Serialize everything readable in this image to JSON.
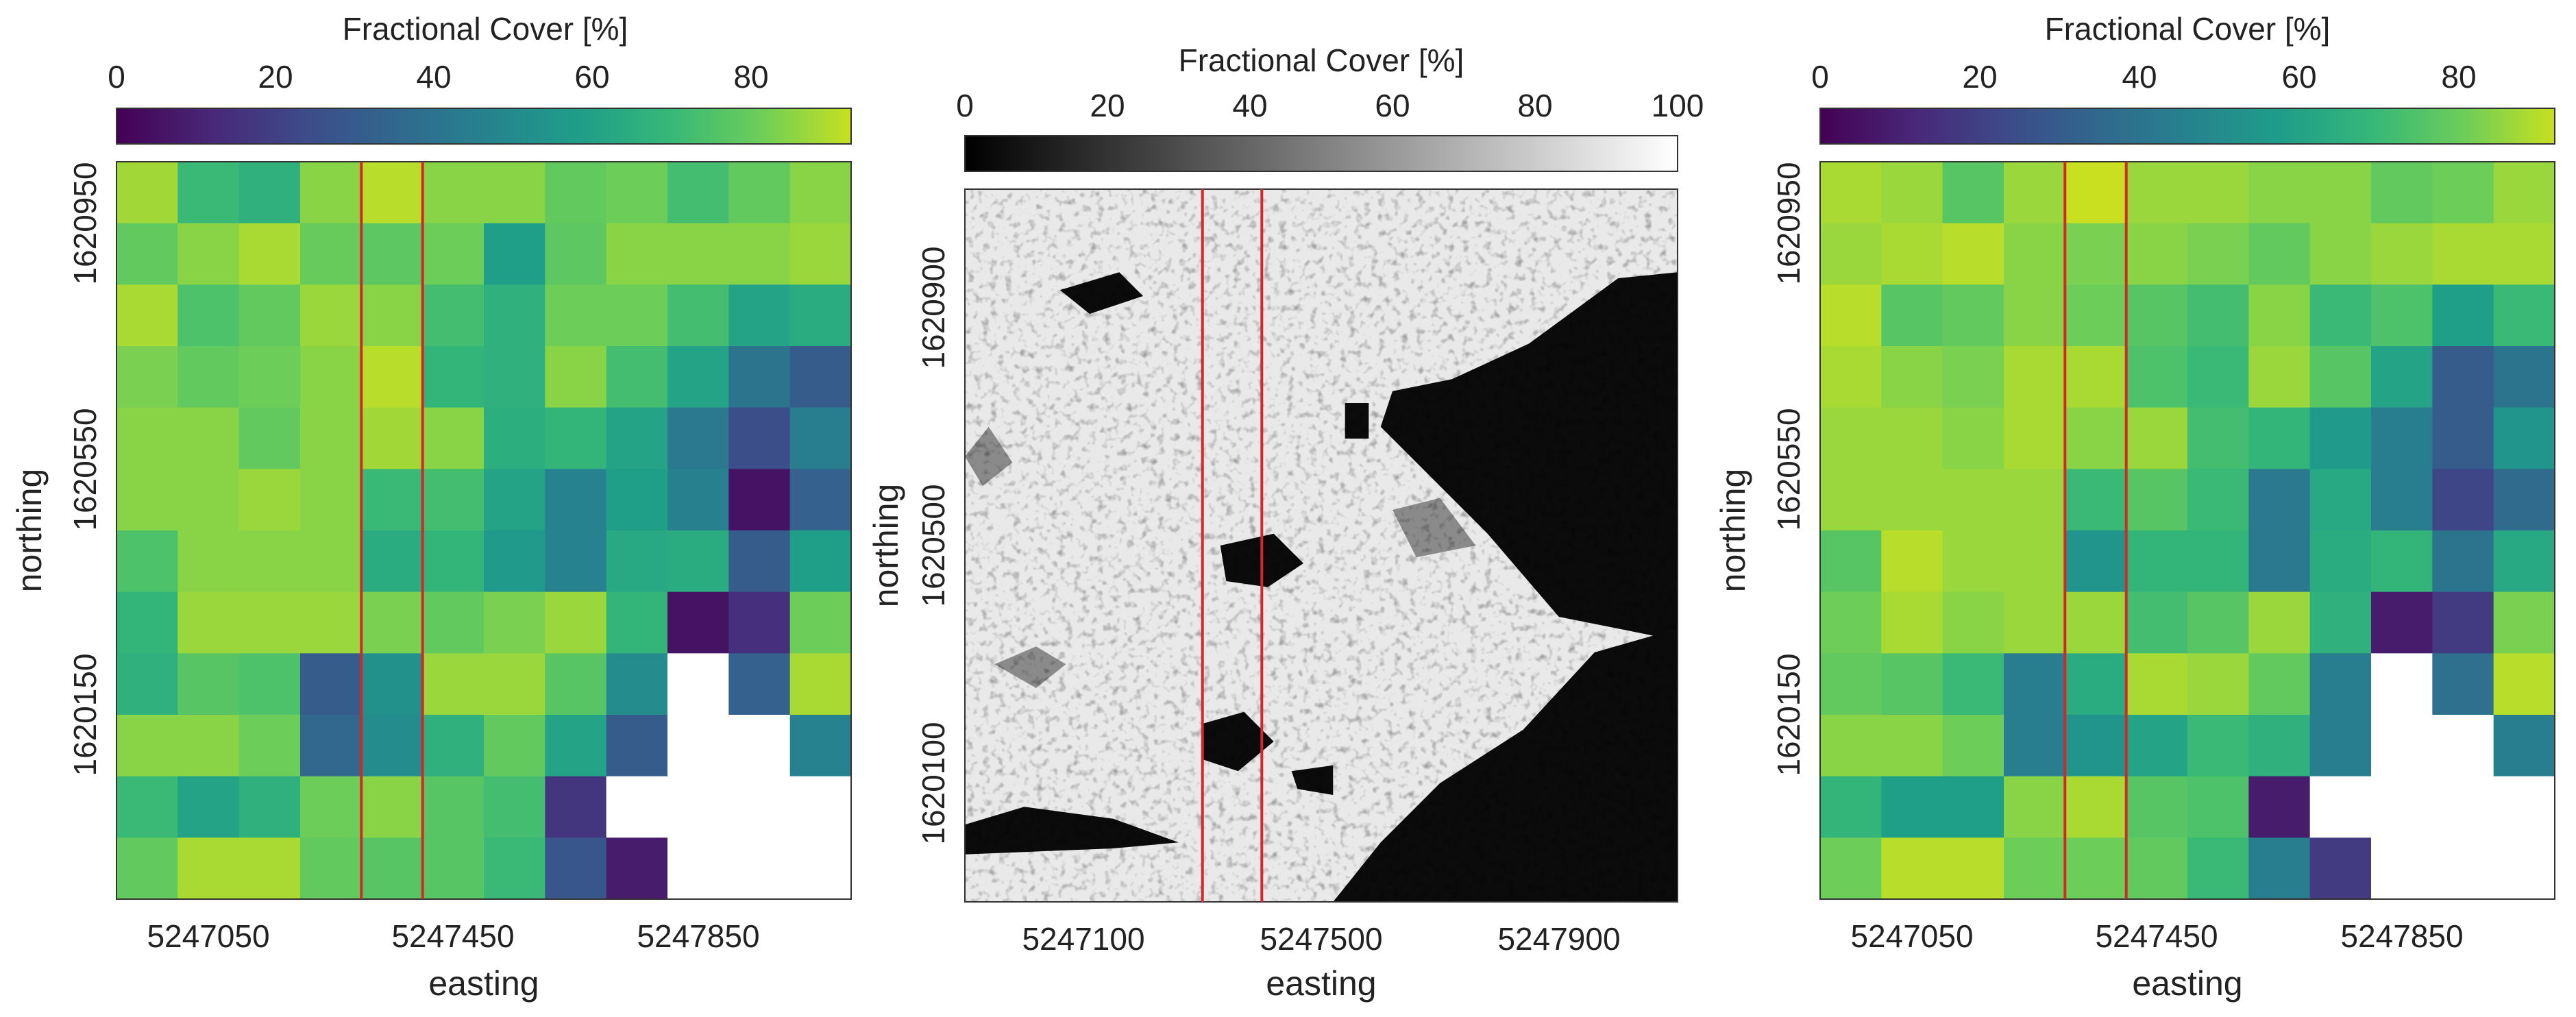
{
  "figure": {
    "panels": [
      "left",
      "middle",
      "right"
    ]
  },
  "chart_data": [
    {
      "type": "heatmap",
      "panel": "left",
      "colormap": "viridis",
      "colorbar_label": "Fractional Cover [%]",
      "colorbar_range": [
        0,
        92
      ],
      "colorbar_ticks": [
        "0",
        "20",
        "40",
        "60",
        "80"
      ],
      "xlabel": "easting",
      "ylabel": "northing",
      "xticks": [
        5247050,
        5247450,
        5247850
      ],
      "yticks": [
        1620950,
        1620550,
        1620150
      ],
      "x_range": [
        5246900,
        5248100
      ],
      "y_range": [
        1619850,
        1621050
      ],
      "red_lines_easting": [
        5247300,
        5247400
      ],
      "grid": [
        [
          87,
          70,
          66,
          84,
          90,
          84,
          84,
          78,
          80,
          72,
          78,
          84
        ],
        [
          78,
          84,
          88,
          79,
          77,
          80,
          58,
          77,
          84,
          84,
          84,
          86
        ],
        [
          88,
          74,
          78,
          86,
          84,
          72,
          66,
          80,
          80,
          72,
          60,
          64
        ],
        [
          82,
          78,
          80,
          84,
          90,
          68,
          66,
          84,
          72,
          60,
          40,
          30
        ],
        [
          84,
          84,
          78,
          84,
          87,
          84,
          65,
          68,
          60,
          42,
          25,
          44
        ],
        [
          84,
          84,
          86,
          84,
          70,
          72,
          60,
          46,
          58,
          45,
          5,
          32
        ],
        [
          74,
          84,
          84,
          84,
          64,
          68,
          56,
          46,
          62,
          64,
          30,
          58
        ],
        [
          68,
          86,
          86,
          86,
          82,
          78,
          82,
          86,
          68,
          5,
          14,
          80
        ],
        [
          66,
          76,
          74,
          30,
          52,
          86,
          86,
          76,
          50,
          null,
          32,
          88
        ],
        [
          84,
          84,
          80,
          34,
          50,
          66,
          78,
          60,
          30,
          null,
          null,
          46
        ],
        [
          70,
          60,
          66,
          80,
          84,
          76,
          72,
          16,
          null,
          null,
          null,
          null
        ],
        [
          78,
          88,
          88,
          78,
          76,
          76,
          70,
          28,
          8,
          null,
          null,
          null
        ]
      ]
    },
    {
      "type": "heatmap",
      "panel": "middle",
      "colormap": "gray",
      "colorbar_label": "Fractional Cover [%]",
      "colorbar_range": [
        0,
        100
      ],
      "colorbar_ticks": [
        "0",
        "20",
        "40",
        "60",
        "80",
        "100"
      ],
      "xlabel": "easting",
      "ylabel": "northing",
      "xticks": [
        5247100,
        5247500,
        5247900
      ],
      "yticks": [
        1620900,
        1620500,
        1620100
      ],
      "x_range": [
        5246900,
        5248100
      ],
      "y_range": [
        1619900,
        1621100
      ],
      "red_lines_easting": [
        5247300,
        5247400
      ],
      "features": [
        {
          "kind": "dark_region",
          "points": [
            [
              5247620,
              1620760
            ],
            [
              5247720,
              1620780
            ],
            [
              5247850,
              1620840
            ],
            [
              5248000,
              1620950
            ],
            [
              5248100,
              1620960
            ],
            [
              5248100,
              1620340
            ],
            [
              5248000,
              1620360
            ],
            [
              5247900,
              1620380
            ],
            [
              5247780,
              1620520
            ],
            [
              5247680,
              1620620
            ],
            [
              5247600,
              1620700
            ]
          ]
        },
        {
          "kind": "dark_region",
          "points": [
            [
              5247840,
              1620190
            ],
            [
              5247960,
              1620320
            ],
            [
              5248100,
              1620360
            ],
            [
              5248100,
              1619900
            ],
            [
              5247520,
              1619900
            ],
            [
              5247600,
              1620000
            ],
            [
              5247700,
              1620100
            ]
          ]
        },
        {
          "kind": "dark_region",
          "points": [
            [
              5247300,
              1620200
            ],
            [
              5247370,
              1620220
            ],
            [
              5247420,
              1620170
            ],
            [
              5247360,
              1620120
            ],
            [
              5247300,
              1620140
            ]
          ]
        },
        {
          "kind": "dark_region",
          "points": [
            [
              5247330,
              1620500
            ],
            [
              5247420,
              1620520
            ],
            [
              5247470,
              1620470
            ],
            [
              5247410,
              1620430
            ],
            [
              5247340,
              1620440
            ]
          ]
        },
        {
          "kind": "dark_region",
          "points": [
            [
              5247540,
              1620740
            ],
            [
              5247580,
              1620740
            ],
            [
              5247580,
              1620680
            ],
            [
              5247540,
              1620680
            ]
          ]
        },
        {
          "kind": "dark_region",
          "points": [
            [
              5247060,
              1620930
            ],
            [
              5247160,
              1620960
            ],
            [
              5247200,
              1620920
            ],
            [
              5247110,
              1620890
            ]
          ]
        },
        {
          "kind": "dark_region",
          "points": [
            [
              5246900,
              1620030
            ],
            [
              5247000,
              1620060
            ],
            [
              5247150,
              1620040
            ],
            [
              5247260,
              1620000
            ],
            [
              5247150,
              1619990
            ],
            [
              5246900,
              1619980
            ]
          ]
        },
        {
          "kind": "dark_region",
          "points": [
            [
              5247450,
              1620120
            ],
            [
              5247520,
              1620130
            ],
            [
              5247520,
              1620080
            ],
            [
              5247460,
              1620090
            ]
          ]
        },
        {
          "kind": "mid_region",
          "points": [
            [
              5246950,
              1620300
            ],
            [
              5247020,
              1620330
            ],
            [
              5247070,
              1620300
            ],
            [
              5247020,
              1620260
            ]
          ]
        },
        {
          "kind": "mid_region",
          "points": [
            [
              5246900,
              1620650
            ],
            [
              5246940,
              1620700
            ],
            [
              5246980,
              1620640
            ],
            [
              5246930,
              1620600
            ]
          ]
        },
        {
          "kind": "mid_region",
          "points": [
            [
              5247620,
              1620560
            ],
            [
              5247700,
              1620580
            ],
            [
              5247760,
              1620500
            ],
            [
              5247660,
              1620480
            ]
          ]
        }
      ]
    },
    {
      "type": "heatmap",
      "panel": "right",
      "colormap": "viridis",
      "colorbar_label": "Fractional Cover [%]",
      "colorbar_range": [
        0,
        92
      ],
      "colorbar_ticks": [
        "0",
        "20",
        "40",
        "60",
        "80"
      ],
      "xlabel": "easting",
      "ylabel": "northing",
      "xticks": [
        5247050,
        5247450,
        5247850
      ],
      "yticks": [
        1620950,
        1620550,
        1620150
      ],
      "x_range": [
        5246900,
        5248100
      ],
      "y_range": [
        1619850,
        1621050
      ],
      "red_lines_easting": [
        5247300,
        5247400
      ],
      "grid": [
        [
          88,
          86,
          76,
          86,
          92,
          86,
          86,
          84,
          84,
          78,
          80,
          86
        ],
        [
          86,
          88,
          90,
          84,
          82,
          84,
          82,
          78,
          84,
          86,
          88,
          88
        ],
        [
          90,
          76,
          78,
          84,
          80,
          76,
          72,
          84,
          70,
          74,
          58,
          70
        ],
        [
          88,
          84,
          82,
          88,
          88,
          74,
          70,
          86,
          76,
          60,
          30,
          40
        ],
        [
          86,
          86,
          84,
          88,
          84,
          86,
          72,
          68,
          56,
          44,
          30,
          54
        ],
        [
          86,
          86,
          86,
          86,
          70,
          76,
          70,
          42,
          62,
          44,
          22,
          36
        ],
        [
          76,
          90,
          86,
          86,
          54,
          68,
          68,
          42,
          64,
          68,
          40,
          62
        ],
        [
          80,
          88,
          84,
          86,
          86,
          72,
          76,
          86,
          66,
          8,
          18,
          82
        ],
        [
          78,
          76,
          70,
          44,
          64,
          88,
          86,
          78,
          44,
          null,
          38,
          90
        ],
        [
          84,
          84,
          80,
          44,
          54,
          60,
          70,
          66,
          44,
          null,
          null,
          44
        ],
        [
          68,
          58,
          58,
          84,
          88,
          76,
          74,
          8,
          null,
          null,
          null,
          null
        ],
        [
          80,
          90,
          90,
          80,
          80,
          78,
          70,
          44,
          18,
          null,
          null,
          null
        ]
      ]
    }
  ]
}
